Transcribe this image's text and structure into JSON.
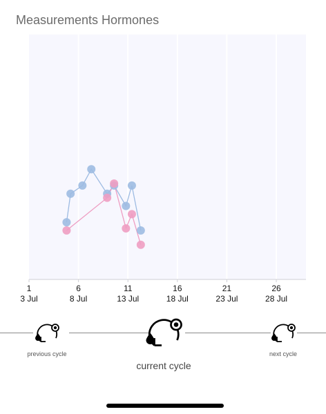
{
  "header": {
    "title": "Measurements Hormones"
  },
  "chart_data": {
    "type": "line",
    "x_ticks": [
      {
        "day": "1",
        "date": "3 Jul"
      },
      {
        "day": "6",
        "date": "8 Jul"
      },
      {
        "day": "11",
        "date": "13 Jul"
      },
      {
        "day": "16",
        "date": "18 Jul"
      },
      {
        "day": "21",
        "date": "23 Jul"
      },
      {
        "day": "26",
        "date": "28 Jul"
      }
    ],
    "xlim": [
      1,
      29
    ],
    "ylim": [
      0,
      60
    ],
    "series": [
      {
        "color": "#9dbbe2",
        "points": [
          [
            4.8,
            14
          ],
          [
            5.2,
            21
          ],
          [
            6.4,
            23
          ],
          [
            7.3,
            27
          ],
          [
            8.9,
            21
          ],
          [
            9.6,
            23
          ],
          [
            10.8,
            18
          ],
          [
            11.4,
            23
          ],
          [
            12.3,
            12
          ]
        ]
      },
      {
        "color": "#ee9dc2",
        "points": [
          [
            4.8,
            12
          ],
          [
            8.9,
            20
          ],
          [
            9.6,
            23.5
          ],
          [
            10.8,
            12.5
          ],
          [
            11.4,
            16
          ],
          [
            12.3,
            8.5
          ]
        ]
      }
    ],
    "grid": "vertical",
    "legend": "none"
  },
  "cycle_nav": {
    "previous_label": "previous cycle",
    "current_label": "current cycle",
    "next_label": "next cycle"
  }
}
